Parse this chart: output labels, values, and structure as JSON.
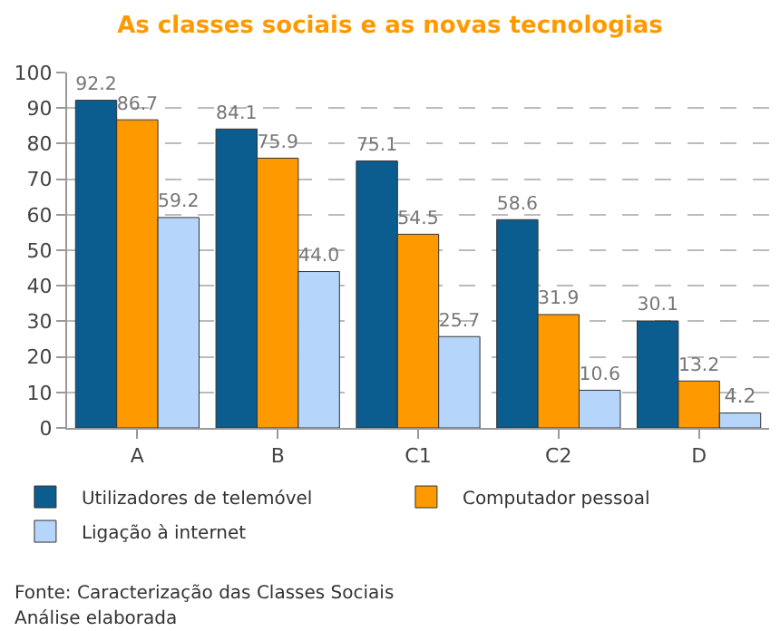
{
  "chart_data": {
    "type": "bar",
    "title": "As classes sociais e as novas tecnologias",
    "categories": [
      "A",
      "B",
      "C1",
      "C2",
      "D"
    ],
    "series": [
      {
        "name": "Utilizadores de telemóvel",
        "color": "#0b5c8f",
        "values": [
          92.2,
          84.1,
          75.1,
          58.6,
          30.1
        ],
        "value_labels": [
          "92.2",
          "84.1",
          "75.1",
          "58.6",
          "30.1"
        ]
      },
      {
        "name": "Computador pessoal",
        "color": "#ff9900",
        "values": [
          86.7,
          75.9,
          54.5,
          31.9,
          13.2
        ],
        "value_labels": [
          "86.7",
          "75.9",
          "54.5",
          "31.9",
          "13.2"
        ]
      },
      {
        "name": "Ligação à internet",
        "color": "#b5d5fb",
        "values": [
          59.2,
          44.0,
          25.7,
          10.6,
          4.2
        ],
        "value_labels": [
          "59.2",
          "44.0",
          "25.7",
          "10.6",
          "4.2"
        ]
      }
    ],
    "ylim": [
      0,
      100
    ],
    "yticks": [
      0,
      10,
      20,
      30,
      40,
      50,
      60,
      70,
      80,
      90,
      100
    ],
    "grid": "y",
    "legend": "bottom",
    "annotations": [
      "Fonte: Caracterização das Classes Sociais",
      "Análise elaborada"
    ]
  }
}
